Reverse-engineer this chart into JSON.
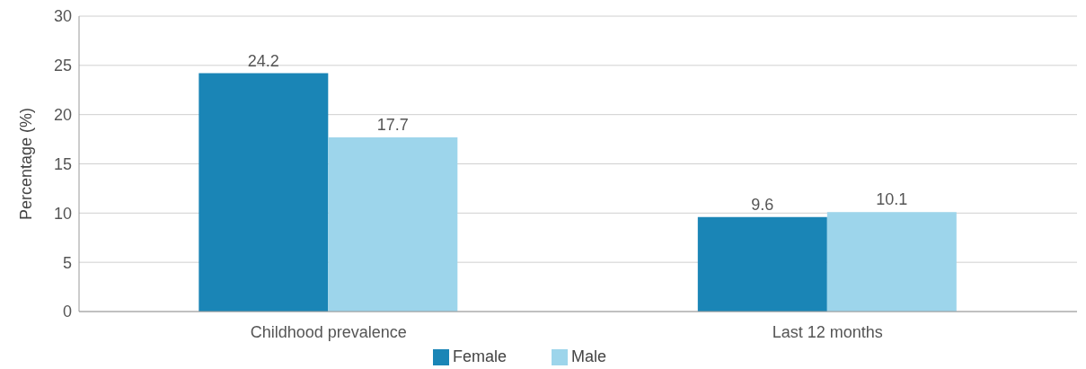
{
  "chart_data": {
    "type": "bar",
    "ylabel": "Percentage (%)",
    "categories": [
      "Childhood prevalence",
      "Last 12 months"
    ],
    "series": [
      {
        "name": "Female",
        "color": "#1a85b6",
        "values": [
          24.2,
          9.6
        ]
      },
      {
        "name": "Male",
        "color": "#9dd5eb",
        "values": [
          17.7,
          10.1
        ]
      }
    ],
    "ylim": [
      0,
      30
    ],
    "yticks": [
      0,
      5,
      10,
      15,
      20,
      25,
      30
    ],
    "grid": "y",
    "legend": "bottom",
    "data_labels": true
  }
}
